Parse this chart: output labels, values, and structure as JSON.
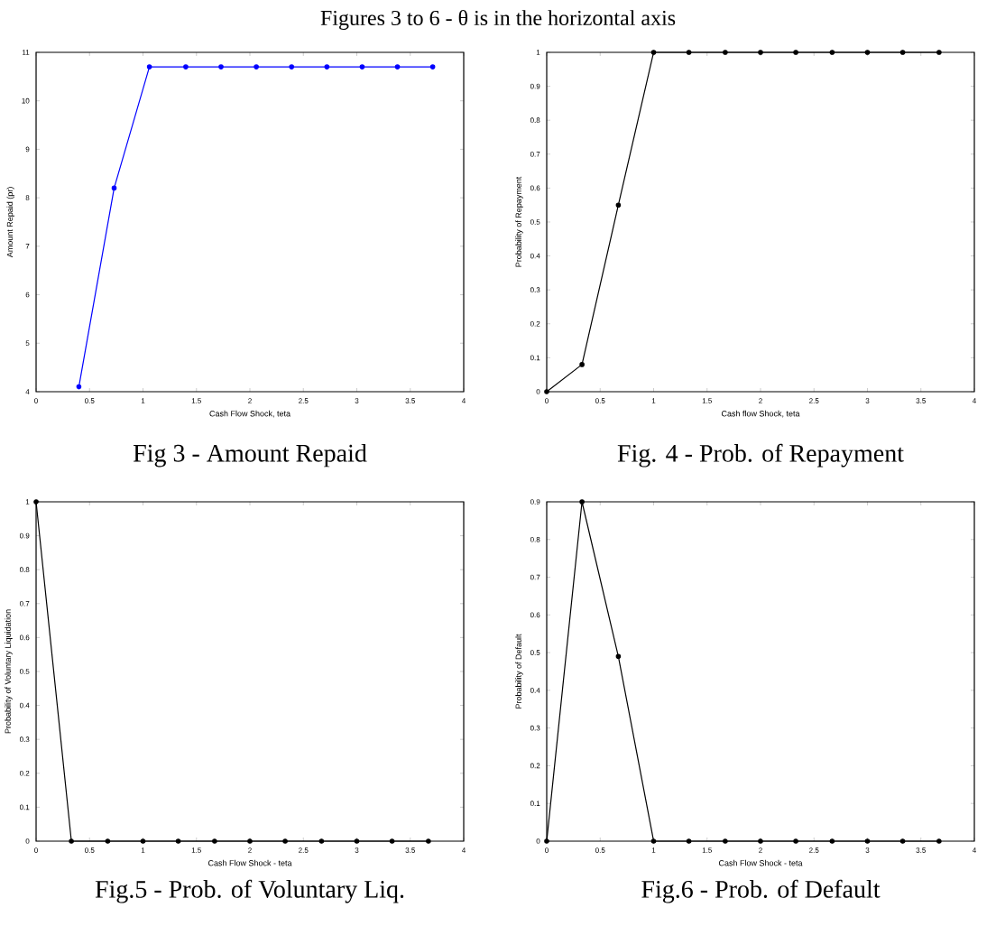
{
  "chart_data": [
    {
      "type": "line",
      "title": "Fig 3 - Amount Repaid",
      "xlabel": "Cash Flow Shock, teta",
      "ylabel": "Amount Repaid (pr)",
      "annotations": [
        "Figures 3 to 6 - θ is in the horizontal axis"
      ],
      "series": [
        {
          "color": "#0000ff",
          "x": [
            0.4,
            0.73,
            1.06,
            1.4,
            1.73,
            2.06,
            2.39,
            2.72,
            3.05,
            3.38,
            3.71
          ],
          "values": [
            4.1,
            8.2,
            10.7,
            10.7,
            10.7,
            10.7,
            10.7,
            10.7,
            10.7,
            10.7,
            10.7
          ]
        }
      ],
      "xlim": [
        0,
        4
      ],
      "ylim": [
        4,
        11
      ],
      "xticks": [
        0,
        0.5,
        1,
        1.5,
        2,
        2.5,
        3,
        3.5,
        4
      ],
      "yticks": [
        4,
        5,
        6,
        7,
        8,
        9,
        10,
        11
      ],
      "marker": "circle",
      "line_style": "solid"
    },
    {
      "type": "line",
      "title": "Fig. 4 - Prob. of Repayment",
      "xlabel": "Cash flow Shock, teta",
      "ylabel": "Probability of Repayment",
      "series": [
        {
          "color": "#000000",
          "x": [
            0,
            0.33,
            0.67,
            1,
            1.33,
            1.67,
            2,
            2.33,
            2.67,
            3,
            3.33,
            3.67
          ],
          "values": [
            0,
            0.08,
            0.55,
            1,
            1,
            1,
            1,
            1,
            1,
            1,
            1,
            1
          ]
        }
      ],
      "xlim": [
        0,
        4
      ],
      "ylim": [
        0,
        1
      ],
      "xticks": [
        0,
        0.5,
        1,
        1.5,
        2,
        2.5,
        3,
        3.5,
        4
      ],
      "yticks": [
        0,
        0.1,
        0.2,
        0.3,
        0.4,
        0.5,
        0.6,
        0.7,
        0.8,
        0.9,
        1
      ],
      "marker": "circle",
      "line_style": "solid"
    },
    {
      "type": "line",
      "title": "Fig.5 - Prob. of Voluntary Liq.",
      "xlabel": "Cash Flow Shock - teta",
      "ylabel": "Probability of Voluntary Liquidation",
      "series": [
        {
          "color": "#000000",
          "x": [
            0,
            0.33,
            0.67,
            1,
            1.33,
            1.67,
            2,
            2.33,
            2.67,
            3,
            3.33,
            3.67
          ],
          "values": [
            1,
            0,
            0,
            0,
            0,
            0,
            0,
            0,
            0,
            0,
            0,
            0
          ]
        }
      ],
      "xlim": [
        0,
        4
      ],
      "ylim": [
        0,
        1
      ],
      "xticks": [
        0,
        0.5,
        1,
        1.5,
        2,
        2.5,
        3,
        3.5,
        4
      ],
      "yticks": [
        0,
        0.1,
        0.2,
        0.3,
        0.4,
        0.5,
        0.6,
        0.7,
        0.8,
        0.9,
        1
      ],
      "marker": "circle",
      "line_style": "solid"
    },
    {
      "type": "line",
      "title": "Fig.6 - Prob. of Default",
      "xlabel": "Cash Flow Shock - teta",
      "ylabel": "Probability of Default",
      "series": [
        {
          "color": "#000000",
          "x": [
            0,
            0.33,
            0.67,
            1,
            1.33,
            1.67,
            2,
            2.33,
            2.67,
            3,
            3.33,
            3.67
          ],
          "values": [
            0,
            0.9,
            0.49,
            0,
            0,
            0,
            0,
            0,
            0,
            0,
            0,
            0
          ]
        }
      ],
      "xlim": [
        0,
        4
      ],
      "ylim": [
        0,
        0.9
      ],
      "xticks": [
        0,
        0.5,
        1,
        1.5,
        2,
        2.5,
        3,
        3.5,
        4
      ],
      "yticks": [
        0,
        0.1,
        0.2,
        0.3,
        0.4,
        0.5,
        0.6,
        0.7,
        0.8,
        0.9
      ],
      "marker": "circle",
      "line_style": "solid"
    }
  ]
}
